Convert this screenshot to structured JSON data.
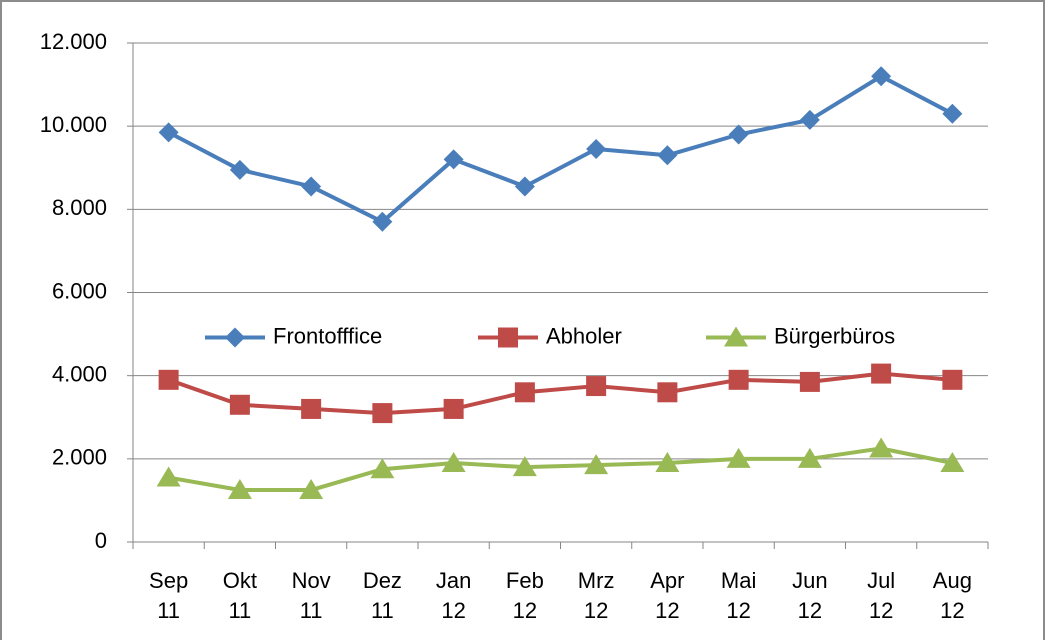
{
  "chart_data": {
    "type": "line",
    "categories": [
      "Sep 11",
      "Okt 11",
      "Nov 11",
      "Dez 11",
      "Jan 12",
      "Feb 12",
      "Mrz 12",
      "Apr 12",
      "Mai 12",
      "Jun 12",
      "Jul 12",
      "Aug 12"
    ],
    "series": [
      {
        "name": "Frontofffice",
        "color": "#4a7ebb",
        "marker": "diamond",
        "values": [
          9850,
          8950,
          8550,
          7700,
          9200,
          8550,
          9450,
          9300,
          9800,
          10150,
          11200,
          10300
        ]
      },
      {
        "name": "Abholer",
        "color": "#be4b48",
        "marker": "square",
        "values": [
          3900,
          3300,
          3200,
          3100,
          3200,
          3600,
          3750,
          3600,
          3900,
          3850,
          4050,
          3900
        ]
      },
      {
        "name": "Bürgerbüros",
        "color": "#98b954",
        "marker": "triangle",
        "values": [
          1550,
          1250,
          1250,
          1750,
          1900,
          1800,
          1850,
          1900,
          2000,
          2000,
          2250,
          1900
        ]
      }
    ],
    "ylim": [
      0,
      12000
    ],
    "yticks": [
      0,
      {
        "value": 2000,
        "label": "2.000"
      },
      {
        "value": 4000,
        "label": "4.000"
      },
      {
        "value": 6000,
        "label": "6.000"
      },
      {
        "value": 8000,
        "label": "8.000"
      },
      {
        "value": 10000,
        "label": "10.000"
      },
      {
        "value": 12000,
        "label": "12.000"
      }
    ],
    "grid": true,
    "legend": "center"
  }
}
